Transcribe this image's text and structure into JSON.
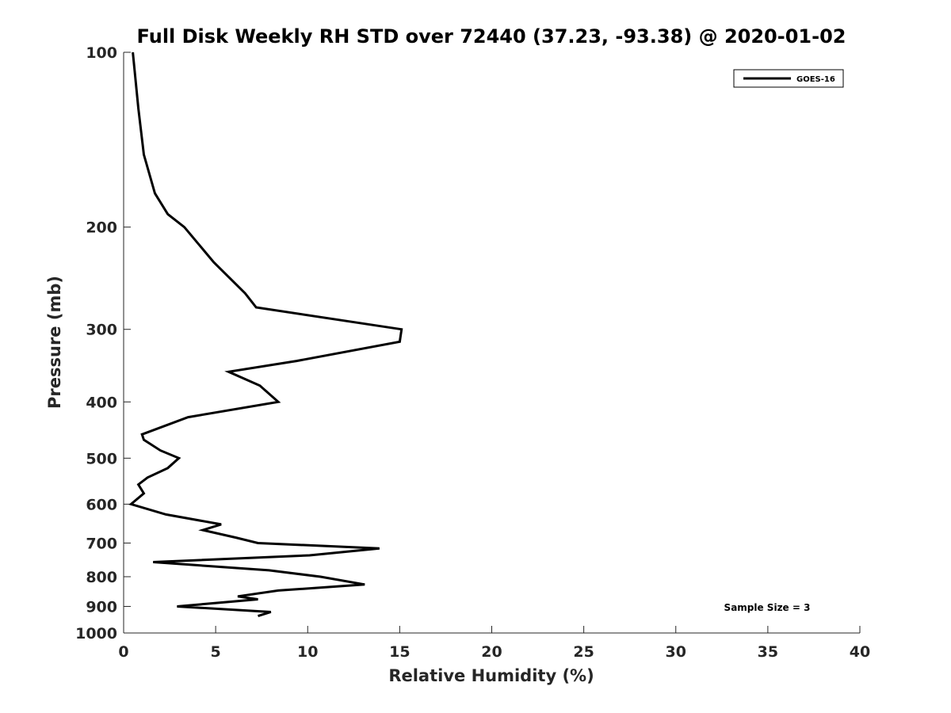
{
  "chart_data": {
    "type": "line",
    "title": "Full Disk Weekly RH STD over 72440 (37.23, -93.38) @ 2020-01-02",
    "xlabel": "Relative Humidity (%)",
    "ylabel": "Pressure (mb)",
    "xlim": [
      0,
      40
    ],
    "ylim": [
      100,
      1000
    ],
    "y_scale": "log",
    "y_reversed": true,
    "grid": false,
    "legend_position": "top-right",
    "x_ticks": [
      "0",
      "5",
      "10",
      "15",
      "20",
      "25",
      "30",
      "35",
      "40"
    ],
    "y_ticks": [
      "100",
      "200",
      "300",
      "400",
      "500",
      "600",
      "700",
      "800",
      "900",
      "1000"
    ],
    "annotation": "Sample Size = 3",
    "series": [
      {
        "name": "GOES-16",
        "color": "#000000",
        "points": [
          [
            0.5,
            100
          ],
          [
            0.8,
            125
          ],
          [
            1.1,
            150
          ],
          [
            1.7,
            175
          ],
          [
            2.4,
            190
          ],
          [
            3.3,
            200
          ],
          [
            4.9,
            230
          ],
          [
            6.6,
            260
          ],
          [
            7.2,
            275
          ],
          [
            15.1,
            300
          ],
          [
            15.0,
            315
          ],
          [
            9.4,
            340
          ],
          [
            5.7,
            355
          ],
          [
            7.4,
            375
          ],
          [
            8.4,
            400
          ],
          [
            3.5,
            425
          ],
          [
            1.0,
            455
          ],
          [
            1.1,
            465
          ],
          [
            2.0,
            485
          ],
          [
            3.0,
            500
          ],
          [
            2.4,
            520
          ],
          [
            1.3,
            540
          ],
          [
            0.8,
            555
          ],
          [
            1.1,
            575
          ],
          [
            0.4,
            600
          ],
          [
            2.3,
            625
          ],
          [
            5.3,
            650
          ],
          [
            4.3,
            665
          ],
          [
            6.1,
            685
          ],
          [
            7.3,
            700
          ],
          [
            13.9,
            715
          ],
          [
            10.1,
            735
          ],
          [
            1.6,
            755
          ],
          [
            7.9,
            780
          ],
          [
            10.7,
            800
          ],
          [
            13.1,
            825
          ],
          [
            8.4,
            845
          ],
          [
            6.2,
            865
          ],
          [
            7.3,
            875
          ],
          [
            2.9,
            900
          ],
          [
            8.0,
            920
          ],
          [
            7.3,
            935
          ]
        ]
      }
    ]
  }
}
